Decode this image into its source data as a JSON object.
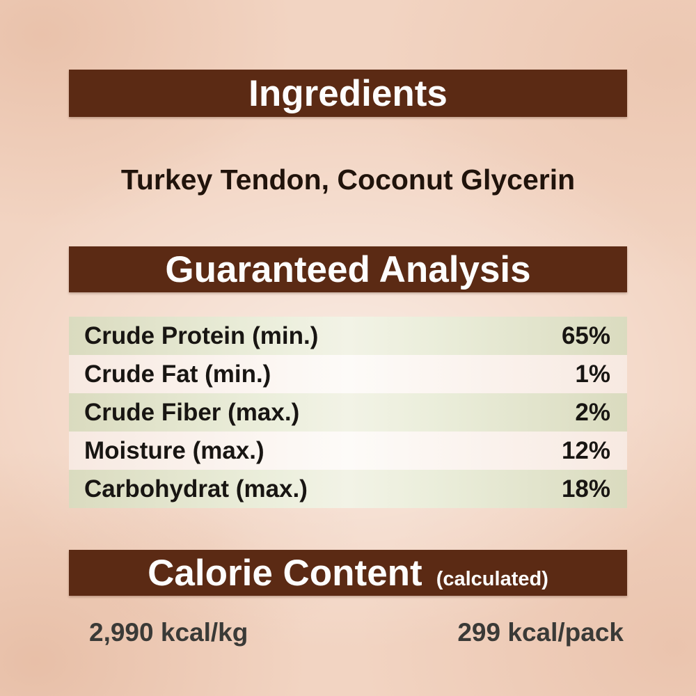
{
  "colors": {
    "background": "#f2d4c2",
    "header_bar": "#5b2a14",
    "header_text": "#fdfdfd",
    "row_olive": "#e7e8d2",
    "row_pink": "#fbf1ea",
    "body_text": "#20130b"
  },
  "ingredients": {
    "title": "Ingredients",
    "list": "Turkey Tendon, Coconut Glycerin"
  },
  "guaranteed_analysis": {
    "title": "Guaranteed Analysis",
    "rows": [
      {
        "label": "Crude Protein (min.)",
        "value": "65%"
      },
      {
        "label": "Crude Fat (min.)",
        "value": "1%"
      },
      {
        "label": "Crude Fiber (max.)",
        "value": "2%"
      },
      {
        "label": "Moisture (max.)",
        "value": "12%"
      },
      {
        "label": "Carbohydrat (max.)",
        "value": "18%"
      }
    ]
  },
  "calorie_content": {
    "title": "Calorie Content",
    "qualifier": "(calculated)",
    "per_kg": "2,990 kcal/kg",
    "per_pack": "299 kcal/pack"
  }
}
